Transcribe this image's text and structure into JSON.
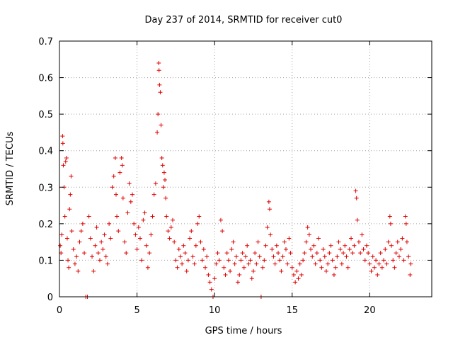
{
  "chart_data": {
    "type": "scatter",
    "title": "Day 237 of 2014, SRMTID for receiver cut0",
    "xlabel": "GPS time / hours",
    "ylabel": "SRMTID / TECUs",
    "xlim": [
      0,
      24
    ],
    "ylim": [
      0,
      0.7
    ],
    "xticks": [
      "0",
      "5",
      "10",
      "15",
      "20"
    ],
    "yticks": [
      "0",
      "0.1",
      "0.2",
      "0.3",
      "0.4",
      "0.5",
      "0.6",
      "0.7"
    ],
    "grid": true,
    "marker": "plus",
    "color": "#e00000",
    "series": [
      {
        "name": "SRMTID",
        "points": [
          [
            0.05,
            0.14
          ],
          [
            0.1,
            0.12
          ],
          [
            0.15,
            0.17
          ],
          [
            0.2,
            0.44
          ],
          [
            0.22,
            0.42
          ],
          [
            0.25,
            0.36
          ],
          [
            0.3,
            0.3
          ],
          [
            0.35,
            0.22
          ],
          [
            0.4,
            0.37
          ],
          [
            0.45,
            0.38
          ],
          [
            0.5,
            0.16
          ],
          [
            0.55,
            0.1
          ],
          [
            0.6,
            0.08
          ],
          [
            0.65,
            0.24
          ],
          [
            0.7,
            0.28
          ],
          [
            0.75,
            0.33
          ],
          [
            0.8,
            0.18
          ],
          [
            0.9,
            0.13
          ],
          [
            1.0,
            0.09
          ],
          [
            1.1,
            0.11
          ],
          [
            1.2,
            0.07
          ],
          [
            1.3,
            0.15
          ],
          [
            1.4,
            0.18
          ],
          [
            1.5,
            0.2
          ],
          [
            1.6,
            0.12
          ],
          [
            1.7,
            0.0
          ],
          [
            1.8,
            0.0
          ],
          [
            1.9,
            0.22
          ],
          [
            2.0,
            0.16
          ],
          [
            2.1,
            0.11
          ],
          [
            2.2,
            0.07
          ],
          [
            2.3,
            0.14
          ],
          [
            2.4,
            0.19
          ],
          [
            2.5,
            0.12
          ],
          [
            2.6,
            0.1
          ],
          [
            2.7,
            0.15
          ],
          [
            2.8,
            0.13
          ],
          [
            2.9,
            0.17
          ],
          [
            3.0,
            0.11
          ],
          [
            3.1,
            0.09
          ],
          [
            3.2,
            0.2
          ],
          [
            3.3,
            0.16
          ],
          [
            3.4,
            0.3
          ],
          [
            3.5,
            0.33
          ],
          [
            3.6,
            0.38
          ],
          [
            3.65,
            0.28
          ],
          [
            3.7,
            0.22
          ],
          [
            3.8,
            0.18
          ],
          [
            3.9,
            0.34
          ],
          [
            4.0,
            0.38
          ],
          [
            4.05,
            0.36
          ],
          [
            4.1,
            0.27
          ],
          [
            4.2,
            0.15
          ],
          [
            4.3,
            0.12
          ],
          [
            4.4,
            0.23
          ],
          [
            4.5,
            0.31
          ],
          [
            4.6,
            0.26
          ],
          [
            4.7,
            0.28
          ],
          [
            4.8,
            0.2
          ],
          [
            4.9,
            0.17
          ],
          [
            5.0,
            0.13
          ],
          [
            5.1,
            0.19
          ],
          [
            5.2,
            0.16
          ],
          [
            5.3,
            0.1
          ],
          [
            5.4,
            0.21
          ],
          [
            5.5,
            0.23
          ],
          [
            5.6,
            0.14
          ],
          [
            5.7,
            0.08
          ],
          [
            5.8,
            0.12
          ],
          [
            5.9,
            0.17
          ],
          [
            6.0,
            0.22
          ],
          [
            6.1,
            0.28
          ],
          [
            6.2,
            0.31
          ],
          [
            6.3,
            0.45
          ],
          [
            6.35,
            0.5
          ],
          [
            6.4,
            0.64
          ],
          [
            6.42,
            0.62
          ],
          [
            6.45,
            0.58
          ],
          [
            6.5,
            0.56
          ],
          [
            6.55,
            0.47
          ],
          [
            6.6,
            0.38
          ],
          [
            6.65,
            0.36
          ],
          [
            6.7,
            0.3
          ],
          [
            6.75,
            0.34
          ],
          [
            6.8,
            0.32
          ],
          [
            6.85,
            0.27
          ],
          [
            6.9,
            0.22
          ],
          [
            7.0,
            0.18
          ],
          [
            7.1,
            0.16
          ],
          [
            7.2,
            0.19
          ],
          [
            7.3,
            0.21
          ],
          [
            7.4,
            0.15
          ],
          [
            7.5,
            0.1
          ],
          [
            7.6,
            0.08
          ],
          [
            7.7,
            0.13
          ],
          [
            7.8,
            0.11
          ],
          [
            7.9,
            0.09
          ],
          [
            8.0,
            0.14
          ],
          [
            8.1,
            0.12
          ],
          [
            8.2,
            0.07
          ],
          [
            8.3,
            0.1
          ],
          [
            8.4,
            0.16
          ],
          [
            8.5,
            0.18
          ],
          [
            8.6,
            0.11
          ],
          [
            8.7,
            0.09
          ],
          [
            8.8,
            0.14
          ],
          [
            8.9,
            0.2
          ],
          [
            9.0,
            0.22
          ],
          [
            9.1,
            0.15
          ],
          [
            9.2,
            0.1
          ],
          [
            9.3,
            0.13
          ],
          [
            9.4,
            0.08
          ],
          [
            9.5,
            0.11
          ],
          [
            9.6,
            0.06
          ],
          [
            9.7,
            0.04
          ],
          [
            9.8,
            0.02
          ],
          [
            9.9,
            0.0
          ],
          [
            10.0,
            0.05
          ],
          [
            10.1,
            0.09
          ],
          [
            10.2,
            0.12
          ],
          [
            10.3,
            0.1
          ],
          [
            10.4,
            0.21
          ],
          [
            10.5,
            0.18
          ],
          [
            10.6,
            0.08
          ],
          [
            10.7,
            0.06
          ],
          [
            10.8,
            0.12
          ],
          [
            10.9,
            0.1
          ],
          [
            11.0,
            0.07
          ],
          [
            11.1,
            0.13
          ],
          [
            11.2,
            0.15
          ],
          [
            11.3,
            0.09
          ],
          [
            11.4,
            0.11
          ],
          [
            11.5,
            0.04
          ],
          [
            11.6,
            0.06
          ],
          [
            11.7,
            0.1
          ],
          [
            11.8,
            0.12
          ],
          [
            11.9,
            0.08
          ],
          [
            12.0,
            0.11
          ],
          [
            12.1,
            0.14
          ],
          [
            12.2,
            0.09
          ],
          [
            12.3,
            0.1
          ],
          [
            12.4,
            0.05
          ],
          [
            12.5,
            0.07
          ],
          [
            12.6,
            0.12
          ],
          [
            12.7,
            0.09
          ],
          [
            12.8,
            0.15
          ],
          [
            12.9,
            0.11
          ],
          [
            13.0,
            0.0
          ],
          [
            13.1,
            0.08
          ],
          [
            13.2,
            0.1
          ],
          [
            13.3,
            0.14
          ],
          [
            13.4,
            0.19
          ],
          [
            13.5,
            0.26
          ],
          [
            13.55,
            0.24
          ],
          [
            13.6,
            0.17
          ],
          [
            13.7,
            0.13
          ],
          [
            13.8,
            0.11
          ],
          [
            13.9,
            0.09
          ],
          [
            14.0,
            0.14
          ],
          [
            14.1,
            0.12
          ],
          [
            14.2,
            0.1
          ],
          [
            14.3,
            0.07
          ],
          [
            14.4,
            0.11
          ],
          [
            14.5,
            0.15
          ],
          [
            14.6,
            0.13
          ],
          [
            14.7,
            0.09
          ],
          [
            14.8,
            0.16
          ],
          [
            14.9,
            0.12
          ],
          [
            15.0,
            0.08
          ],
          [
            15.1,
            0.06
          ],
          [
            15.2,
            0.04
          ],
          [
            15.3,
            0.07
          ],
          [
            15.4,
            0.05
          ],
          [
            15.5,
            0.09
          ],
          [
            15.6,
            0.06
          ],
          [
            15.7,
            0.1
          ],
          [
            15.8,
            0.12
          ],
          [
            15.9,
            0.15
          ],
          [
            16.0,
            0.19
          ],
          [
            16.1,
            0.17
          ],
          [
            16.2,
            0.13
          ],
          [
            16.3,
            0.11
          ],
          [
            16.4,
            0.14
          ],
          [
            16.5,
            0.09
          ],
          [
            16.6,
            0.12
          ],
          [
            16.7,
            0.16
          ],
          [
            16.8,
            0.1
          ],
          [
            16.9,
            0.08
          ],
          [
            17.0,
            0.13
          ],
          [
            17.1,
            0.11
          ],
          [
            17.2,
            0.07
          ],
          [
            17.3,
            0.09
          ],
          [
            17.4,
            0.12
          ],
          [
            17.5,
            0.14
          ],
          [
            17.6,
            0.1
          ],
          [
            17.7,
            0.06
          ],
          [
            17.8,
            0.08
          ],
          [
            17.9,
            0.11
          ],
          [
            18.0,
            0.15
          ],
          [
            18.1,
            0.13
          ],
          [
            18.2,
            0.09
          ],
          [
            18.3,
            0.12
          ],
          [
            18.4,
            0.14
          ],
          [
            18.5,
            0.11
          ],
          [
            18.6,
            0.08
          ],
          [
            18.7,
            0.13
          ],
          [
            18.8,
            0.16
          ],
          [
            18.9,
            0.12
          ],
          [
            19.0,
            0.14
          ],
          [
            19.1,
            0.29
          ],
          [
            19.15,
            0.27
          ],
          [
            19.2,
            0.21
          ],
          [
            19.3,
            0.15
          ],
          [
            19.4,
            0.12
          ],
          [
            19.5,
            0.17
          ],
          [
            19.6,
            0.13
          ],
          [
            19.7,
            0.1
          ],
          [
            19.8,
            0.14
          ],
          [
            19.9,
            0.12
          ],
          [
            20.0,
            0.09
          ],
          [
            20.1,
            0.07
          ],
          [
            20.2,
            0.11
          ],
          [
            20.3,
            0.08
          ],
          [
            20.4,
            0.1
          ],
          [
            20.5,
            0.06
          ],
          [
            20.6,
            0.09
          ],
          [
            20.7,
            0.12
          ],
          [
            20.8,
            0.08
          ],
          [
            20.9,
            0.1
          ],
          [
            21.0,
            0.13
          ],
          [
            21.1,
            0.09
          ],
          [
            21.2,
            0.15
          ],
          [
            21.3,
            0.22
          ],
          [
            21.35,
            0.2
          ],
          [
            21.4,
            0.14
          ],
          [
            21.5,
            0.1
          ],
          [
            21.6,
            0.08
          ],
          [
            21.7,
            0.12
          ],
          [
            21.8,
            0.15
          ],
          [
            21.9,
            0.11
          ],
          [
            22.0,
            0.13
          ],
          [
            22.1,
            0.16
          ],
          [
            22.2,
            0.1
          ],
          [
            22.3,
            0.22
          ],
          [
            22.35,
            0.2
          ],
          [
            22.4,
            0.15
          ],
          [
            22.5,
            0.11
          ],
          [
            22.6,
            0.06
          ],
          [
            22.65,
            0.09
          ]
        ]
      }
    ]
  }
}
